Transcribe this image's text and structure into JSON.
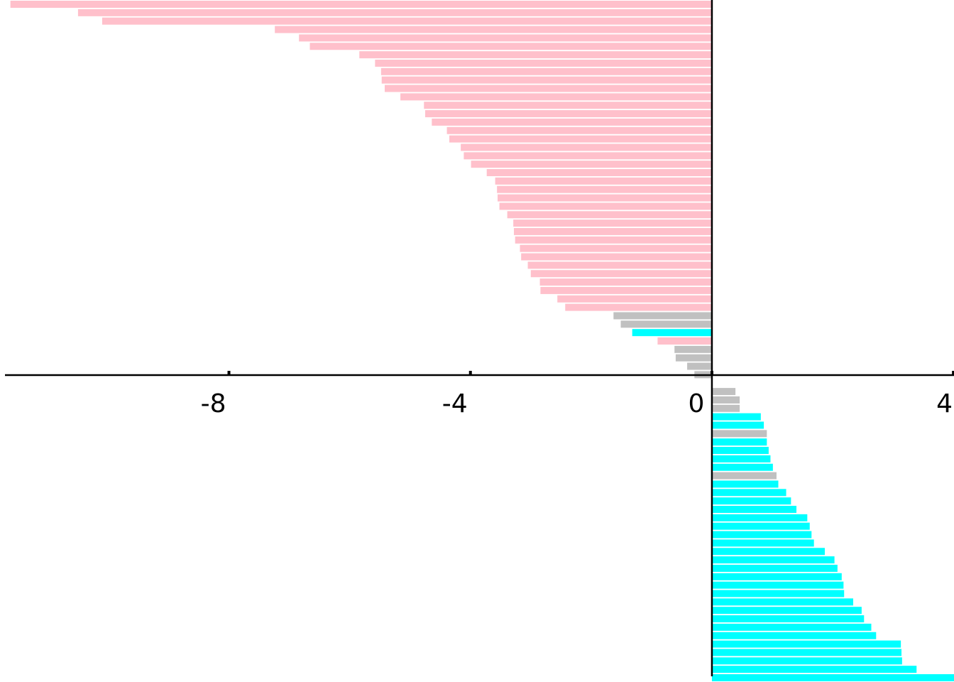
{
  "chart_data": {
    "type": "bar",
    "orientation": "horizontal",
    "xlim": [
      -11.71,
      4.01
    ],
    "xticks": [
      {
        "value": -8,
        "label": "-8"
      },
      {
        "value": -4,
        "label": "-4"
      },
      {
        "value": 0,
        "label": "0"
      },
      {
        "value": 4,
        "label": "4"
      }
    ],
    "grid": false,
    "legend": "none",
    "colors": {
      "negative": "#ffc0cb",
      "positive": "#00ffff",
      "neutral": "#c0c0c0",
      "axis": "#000000"
    },
    "bars": [
      {
        "value": -11.62,
        "group": "negative"
      },
      {
        "value": -10.5,
        "group": "negative"
      },
      {
        "value": -10.1,
        "group": "negative"
      },
      {
        "value": -7.24,
        "group": "negative"
      },
      {
        "value": -6.84,
        "group": "negative"
      },
      {
        "value": -6.66,
        "group": "negative"
      },
      {
        "value": -5.84,
        "group": "negative"
      },
      {
        "value": -5.58,
        "group": "negative"
      },
      {
        "value": -5.48,
        "group": "negative"
      },
      {
        "value": -5.47,
        "group": "negative"
      },
      {
        "value": -5.42,
        "group": "negative"
      },
      {
        "value": -5.16,
        "group": "negative"
      },
      {
        "value": -4.77,
        "group": "negative"
      },
      {
        "value": -4.75,
        "group": "negative"
      },
      {
        "value": -4.64,
        "group": "negative"
      },
      {
        "value": -4.39,
        "group": "negative"
      },
      {
        "value": -4.35,
        "group": "negative"
      },
      {
        "value": -4.16,
        "group": "negative"
      },
      {
        "value": -4.11,
        "group": "negative"
      },
      {
        "value": -3.99,
        "group": "negative"
      },
      {
        "value": -3.73,
        "group": "negative"
      },
      {
        "value": -3.59,
        "group": "negative"
      },
      {
        "value": -3.56,
        "group": "negative"
      },
      {
        "value": -3.55,
        "group": "negative"
      },
      {
        "value": -3.52,
        "group": "negative"
      },
      {
        "value": -3.39,
        "group": "negative"
      },
      {
        "value": -3.29,
        "group": "negative"
      },
      {
        "value": -3.28,
        "group": "negative"
      },
      {
        "value": -3.26,
        "group": "negative"
      },
      {
        "value": -3.18,
        "group": "negative"
      },
      {
        "value": -3.16,
        "group": "negative"
      },
      {
        "value": -3.05,
        "group": "negative"
      },
      {
        "value": -3.0,
        "group": "negative"
      },
      {
        "value": -2.85,
        "group": "negative"
      },
      {
        "value": -2.84,
        "group": "negative"
      },
      {
        "value": -2.56,
        "group": "negative"
      },
      {
        "value": -2.43,
        "group": "negative"
      },
      {
        "value": -1.63,
        "group": "neutral"
      },
      {
        "value": -1.51,
        "group": "neutral"
      },
      {
        "value": -1.32,
        "group": "positive"
      },
      {
        "value": -0.9,
        "group": "negative"
      },
      {
        "value": -0.62,
        "group": "neutral"
      },
      {
        "value": -0.6,
        "group": "neutral"
      },
      {
        "value": -0.41,
        "group": "neutral"
      },
      {
        "value": -0.29,
        "group": "neutral"
      },
      {
        "value": 0.39,
        "group": "neutral"
      },
      {
        "value": 0.46,
        "group": "neutral"
      },
      {
        "value": 0.46,
        "group": "neutral"
      },
      {
        "value": 0.81,
        "group": "positive"
      },
      {
        "value": 0.86,
        "group": "positive"
      },
      {
        "value": 0.91,
        "group": "neutral"
      },
      {
        "value": 0.91,
        "group": "positive"
      },
      {
        "value": 0.94,
        "group": "positive"
      },
      {
        "value": 0.97,
        "group": "positive"
      },
      {
        "value": 1.01,
        "group": "positive"
      },
      {
        "value": 1.07,
        "group": "neutral"
      },
      {
        "value": 1.1,
        "group": "positive"
      },
      {
        "value": 1.23,
        "group": "positive"
      },
      {
        "value": 1.31,
        "group": "positive"
      },
      {
        "value": 1.4,
        "group": "positive"
      },
      {
        "value": 1.58,
        "group": "positive"
      },
      {
        "value": 1.62,
        "group": "positive"
      },
      {
        "value": 1.65,
        "group": "positive"
      },
      {
        "value": 1.69,
        "group": "positive"
      },
      {
        "value": 1.87,
        "group": "positive"
      },
      {
        "value": 2.03,
        "group": "positive"
      },
      {
        "value": 2.08,
        "group": "positive"
      },
      {
        "value": 2.15,
        "group": "positive"
      },
      {
        "value": 2.18,
        "group": "positive"
      },
      {
        "value": 2.19,
        "group": "positive"
      },
      {
        "value": 2.34,
        "group": "positive"
      },
      {
        "value": 2.48,
        "group": "positive"
      },
      {
        "value": 2.52,
        "group": "positive"
      },
      {
        "value": 2.64,
        "group": "positive"
      },
      {
        "value": 2.72,
        "group": "positive"
      },
      {
        "value": 3.13,
        "group": "positive"
      },
      {
        "value": 3.14,
        "group": "positive"
      },
      {
        "value": 3.15,
        "group": "positive"
      },
      {
        "value": 3.39,
        "group": "positive"
      },
      {
        "value": 4.01,
        "group": "positive"
      }
    ]
  }
}
